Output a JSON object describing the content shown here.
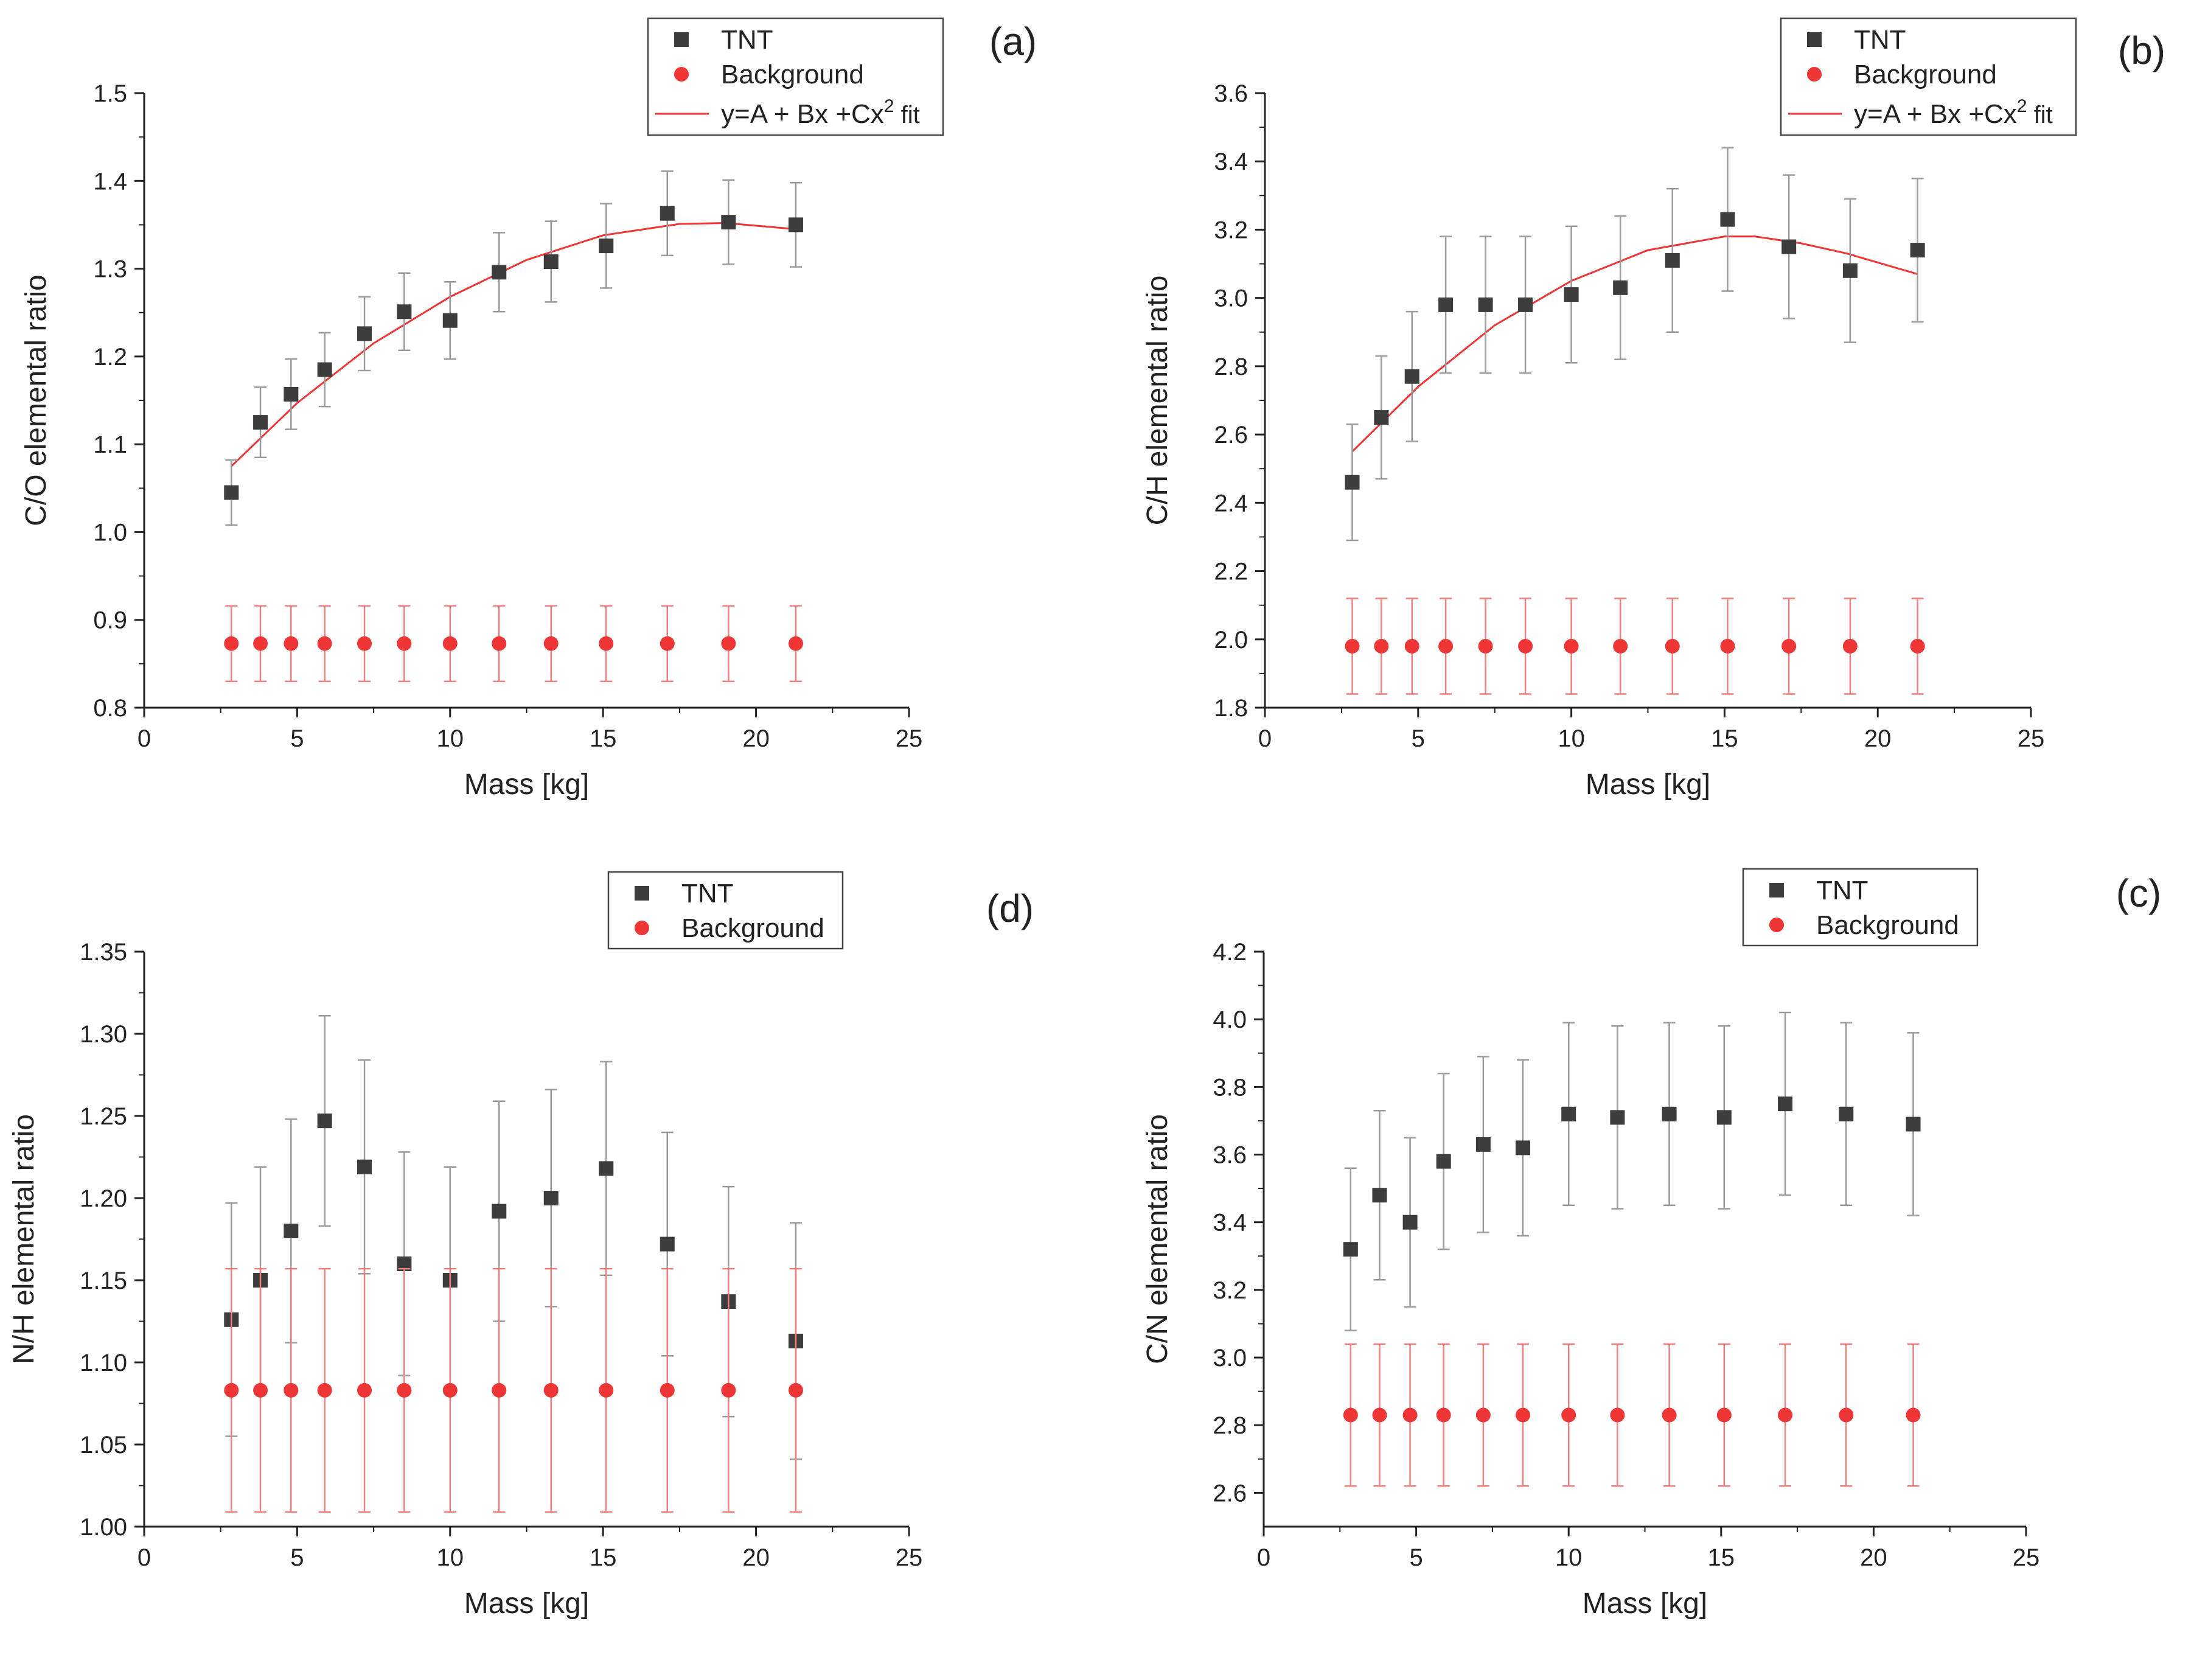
{
  "colors": {
    "tnt": "#3d3d3d",
    "background": "#ee3636",
    "fit": "#ee3636",
    "axis": "#222222"
  },
  "legend": {
    "tnt": "TNT",
    "background": "Background",
    "fit": "y=A + Bx +Cx",
    "fit_sup": "2",
    "fit_tail": " fit"
  },
  "chart_data": [
    {
      "id": "a",
      "panel_label": "(a)",
      "type": "scatter",
      "xlabel": "Mass [kg]",
      "ylabel": "C/O elemental ratio",
      "xlim": [
        0,
        25
      ],
      "ylim": [
        0.8,
        1.5
      ],
      "xticks": [
        0,
        5,
        10,
        15,
        20,
        25
      ],
      "xtick_labels": [
        "0",
        "5",
        "10",
        "15",
        "20",
        "25"
      ],
      "yticks": [
        0.8,
        0.9,
        1.0,
        1.1,
        1.2,
        1.3,
        1.4,
        1.5
      ],
      "ytick_labels": [
        "0.8",
        "0.9",
        "1.0",
        "1.1",
        "1.2",
        "1.3",
        "1.4",
        "1.5"
      ],
      "series": [
        {
          "name": "TNT",
          "x": [
            2.85,
            3.8,
            4.8,
            5.9,
            7.2,
            8.5,
            10.0,
            11.6,
            13.3,
            15.1,
            17.1,
            19.1,
            21.3
          ],
          "y": [
            1.045,
            1.125,
            1.157,
            1.185,
            1.226,
            1.251,
            1.241,
            1.296,
            1.308,
            1.326,
            1.363,
            1.353,
            1.35
          ],
          "err": [
            0.037,
            0.04,
            0.04,
            0.042,
            0.042,
            0.044,
            0.044,
            0.045,
            0.046,
            0.048,
            0.048,
            0.048,
            0.048
          ]
        },
        {
          "name": "Background",
          "x": [
            2.85,
            3.8,
            4.8,
            5.9,
            7.2,
            8.5,
            10.0,
            11.6,
            13.3,
            15.1,
            17.1,
            19.1,
            21.3
          ],
          "y": [
            0.873,
            0.873,
            0.873,
            0.873,
            0.873,
            0.873,
            0.873,
            0.873,
            0.873,
            0.873,
            0.873,
            0.873,
            0.873
          ],
          "err": [
            0.043,
            0.043,
            0.043,
            0.043,
            0.043,
            0.043,
            0.043,
            0.043,
            0.043,
            0.043,
            0.043,
            0.043,
            0.043
          ]
        },
        {
          "name": "y=A + Bx +Cx2 fit",
          "x": [
            2.85,
            5,
            7.5,
            10,
            12.5,
            15,
            17.5,
            19,
            21.3
          ],
          "y": [
            1.075,
            1.147,
            1.215,
            1.268,
            1.31,
            1.338,
            1.351,
            1.352,
            1.345
          ]
        }
      ]
    },
    {
      "id": "b",
      "panel_label": "(b)",
      "type": "scatter",
      "xlabel": "Mass [kg]",
      "ylabel": "C/H elemental ratio",
      "xlim": [
        0,
        25
      ],
      "ylim": [
        1.8,
        3.6
      ],
      "xticks": [
        0,
        5,
        10,
        15,
        20,
        25
      ],
      "xtick_labels": [
        "0",
        "5",
        "10",
        "15",
        "20",
        "25"
      ],
      "yticks": [
        1.8,
        2.0,
        2.2,
        2.4,
        2.6,
        2.8,
        3.0,
        3.2,
        3.4,
        3.6
      ],
      "ytick_labels": [
        "1.8",
        "2.0",
        "2.2",
        "2.4",
        "2.6",
        "2.8",
        "3.0",
        "3.2",
        "3.4",
        "3.6"
      ],
      "series": [
        {
          "name": "TNT",
          "x": [
            2.85,
            3.8,
            4.8,
            5.9,
            7.2,
            8.5,
            10.0,
            11.6,
            13.3,
            15.1,
            17.1,
            19.1,
            21.3
          ],
          "y": [
            2.46,
            2.65,
            2.77,
            2.98,
            2.98,
            2.98,
            3.01,
            3.03,
            3.11,
            3.23,
            3.15,
            3.08,
            3.14
          ],
          "err": [
            0.17,
            0.18,
            0.19,
            0.2,
            0.2,
            0.2,
            0.2,
            0.21,
            0.21,
            0.21,
            0.21,
            0.21,
            0.21
          ]
        },
        {
          "name": "Background",
          "x": [
            2.85,
            3.8,
            4.8,
            5.9,
            7.2,
            8.5,
            10.0,
            11.6,
            13.3,
            15.1,
            17.1,
            19.1,
            21.3
          ],
          "y": [
            1.98,
            1.98,
            1.98,
            1.98,
            1.98,
            1.98,
            1.98,
            1.98,
            1.98,
            1.98,
            1.98,
            1.98,
            1.98
          ],
          "err": [
            0.14,
            0.14,
            0.14,
            0.14,
            0.14,
            0.14,
            0.14,
            0.14,
            0.14,
            0.14,
            0.14,
            0.14,
            0.14
          ]
        },
        {
          "name": "y=A + Bx +Cx2 fit",
          "x": [
            2.85,
            5,
            7.5,
            10,
            12.5,
            15,
            16,
            17.5,
            19,
            21.3
          ],
          "y": [
            2.55,
            2.74,
            2.92,
            3.05,
            3.14,
            3.18,
            3.18,
            3.16,
            3.13,
            3.07
          ]
        }
      ]
    },
    {
      "id": "d",
      "panel_label": "(d)",
      "type": "scatter",
      "xlabel": "Mass [kg]",
      "ylabel": "N/H elemental ratio",
      "xlim": [
        0,
        25
      ],
      "ylim": [
        1.0,
        1.35
      ],
      "xticks": [
        0,
        5,
        10,
        15,
        20,
        25
      ],
      "xtick_labels": [
        "0",
        "5",
        "10",
        "15",
        "20",
        "25"
      ],
      "yticks": [
        1.0,
        1.05,
        1.1,
        1.15,
        1.2,
        1.25,
        1.3,
        1.35
      ],
      "ytick_labels": [
        "1.00",
        "1.05",
        "1.10",
        "1.15",
        "1.20",
        "1.25",
        "1.30",
        "1.35"
      ],
      "series": [
        {
          "name": "TNT",
          "x": [
            2.85,
            3.8,
            4.8,
            5.9,
            7.2,
            8.5,
            10.0,
            11.6,
            13.3,
            15.1,
            17.1,
            19.1,
            21.3
          ],
          "y": [
            1.126,
            1.15,
            1.18,
            1.247,
            1.219,
            1.16,
            1.15,
            1.192,
            1.2,
            1.218,
            1.172,
            1.137,
            1.113
          ],
          "err": [
            0.071,
            0.069,
            0.068,
            0.064,
            0.065,
            0.068,
            0.069,
            0.067,
            0.066,
            0.065,
            0.068,
            0.07,
            0.072
          ]
        },
        {
          "name": "Background",
          "x": [
            2.85,
            3.8,
            4.8,
            5.9,
            7.2,
            8.5,
            10.0,
            11.6,
            13.3,
            15.1,
            17.1,
            19.1,
            21.3
          ],
          "y": [
            1.083,
            1.083,
            1.083,
            1.083,
            1.083,
            1.083,
            1.083,
            1.083,
            1.083,
            1.083,
            1.083,
            1.083,
            1.083
          ],
          "err": [
            0.074,
            0.074,
            0.074,
            0.074,
            0.074,
            0.074,
            0.074,
            0.074,
            0.074,
            0.074,
            0.074,
            0.074,
            0.074
          ]
        }
      ]
    },
    {
      "id": "c",
      "panel_label": "(c)",
      "type": "scatter",
      "xlabel": "Mass [kg]",
      "ylabel": "C/N elemental ratio",
      "xlim": [
        0,
        25
      ],
      "ylim": [
        2.5,
        4.2
      ],
      "xticks": [
        0,
        5,
        10,
        15,
        20,
        25
      ],
      "xtick_labels": [
        "0",
        "5",
        "10",
        "15",
        "20",
        "25"
      ],
      "yticks": [
        2.6,
        2.8,
        3.0,
        3.2,
        3.4,
        3.6,
        3.8,
        4.0,
        4.2
      ],
      "ytick_labels": [
        "2.6",
        "2.8",
        "3.0",
        "3.2",
        "3.4",
        "3.6",
        "3.8",
        "4.0",
        "4.2"
      ],
      "series": [
        {
          "name": "TNT",
          "x": [
            2.85,
            3.8,
            4.8,
            5.9,
            7.2,
            8.5,
            10.0,
            11.6,
            13.3,
            15.1,
            17.1,
            19.1,
            21.3
          ],
          "y": [
            3.32,
            3.48,
            3.4,
            3.58,
            3.63,
            3.62,
            3.72,
            3.71,
            3.72,
            3.71,
            3.75,
            3.72,
            3.69
          ],
          "err": [
            0.24,
            0.25,
            0.25,
            0.26,
            0.26,
            0.26,
            0.27,
            0.27,
            0.27,
            0.27,
            0.27,
            0.27,
            0.27
          ]
        },
        {
          "name": "Background",
          "x": [
            2.85,
            3.8,
            4.8,
            5.9,
            7.2,
            8.5,
            10.0,
            11.6,
            13.3,
            15.1,
            17.1,
            19.1,
            21.3
          ],
          "y": [
            2.83,
            2.83,
            2.83,
            2.83,
            2.83,
            2.83,
            2.83,
            2.83,
            2.83,
            2.83,
            2.83,
            2.83,
            2.83
          ],
          "err": [
            0.21,
            0.21,
            0.21,
            0.21,
            0.21,
            0.21,
            0.21,
            0.21,
            0.21,
            0.21,
            0.21,
            0.21,
            0.21
          ]
        }
      ]
    }
  ]
}
